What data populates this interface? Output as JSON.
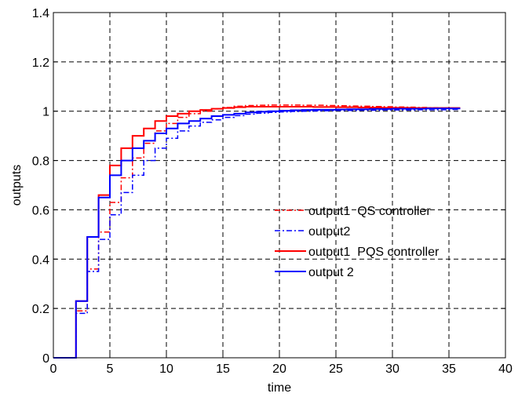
{
  "chart_data": {
    "type": "line",
    "xlabel": "time",
    "ylabel": "outputs",
    "xlim": [
      0,
      40
    ],
    "ylim": [
      0,
      1.4
    ],
    "x_ticks": [
      0,
      5,
      10,
      15,
      20,
      25,
      30,
      35,
      40
    ],
    "y_ticks": [
      0,
      0.2,
      0.4,
      0.6,
      0.8,
      1,
      1.2,
      1.4
    ],
    "x_tick_labels": [
      "0",
      "5",
      "10",
      "15",
      "20",
      "25",
      "30",
      "35",
      "40"
    ],
    "y_tick_labels": [
      "0",
      "0.2",
      "0.4",
      "0.6",
      "0.8",
      "1",
      "1.2",
      "1.4"
    ],
    "grid": true,
    "legend_position": "center-right",
    "step": true,
    "x": [
      0,
      1,
      2,
      3,
      4,
      5,
      6,
      7,
      8,
      9,
      10,
      11,
      12,
      13,
      14,
      15,
      16,
      17,
      18,
      19,
      20,
      21,
      22,
      23,
      24,
      25,
      26,
      27,
      28,
      29,
      30,
      31,
      32,
      33,
      34,
      35,
      36
    ],
    "series": [
      {
        "name": "output1  QS controller",
        "color": "#ff0000",
        "style": "dashdot",
        "values": [
          0,
          0,
          0.19,
          0.36,
          0.51,
          0.63,
          0.73,
          0.81,
          0.87,
          0.92,
          0.95,
          0.975,
          0.99,
          1.0,
          1.01,
          1.015,
          1.02,
          1.023,
          1.024,
          1.025,
          1.025,
          1.025,
          1.024,
          1.024,
          1.023,
          1.022,
          1.021,
          1.02,
          1.019,
          1.018,
          1.017,
          1.016,
          1.015,
          1.014,
          1.013,
          1.012,
          1.012
        ]
      },
      {
        "name": "output2",
        "color": "#0000ff",
        "style": "dashdot",
        "values": [
          0,
          0,
          0.18,
          0.35,
          0.48,
          0.58,
          0.67,
          0.74,
          0.8,
          0.85,
          0.89,
          0.92,
          0.94,
          0.955,
          0.965,
          0.975,
          0.982,
          0.988,
          0.992,
          0.995,
          0.997,
          0.999,
          1.0,
          1.001,
          1.002,
          1.003,
          1.003,
          1.004,
          1.004,
          1.005,
          1.005,
          1.005,
          1.006,
          1.006,
          1.006,
          1.007,
          1.007
        ]
      },
      {
        "name": "output1  PQS controller",
        "color": "#ff0000",
        "style": "solid",
        "values": [
          0,
          0,
          0.23,
          0.49,
          0.66,
          0.78,
          0.85,
          0.9,
          0.93,
          0.96,
          0.98,
          0.99,
          1.0,
          1.005,
          1.01,
          1.013,
          1.016,
          1.018,
          1.018,
          1.018,
          1.018,
          1.018,
          1.018,
          1.017,
          1.017,
          1.016,
          1.016,
          1.015,
          1.015,
          1.014,
          1.014,
          1.014,
          1.013,
          1.013,
          1.013,
          1.013,
          1.013
        ]
      },
      {
        "name": "output 2",
        "color": "#0000ff",
        "style": "solid",
        "values": [
          0,
          0,
          0.23,
          0.49,
          0.65,
          0.74,
          0.8,
          0.85,
          0.88,
          0.91,
          0.93,
          0.95,
          0.96,
          0.97,
          0.98,
          0.985,
          0.99,
          0.995,
          0.998,
          1.0,
          1.002,
          1.004,
          1.005,
          1.006,
          1.006,
          1.007,
          1.008,
          1.008,
          1.009,
          1.009,
          1.01,
          1.01,
          1.01,
          1.011,
          1.011,
          1.011,
          1.011
        ]
      }
    ]
  }
}
